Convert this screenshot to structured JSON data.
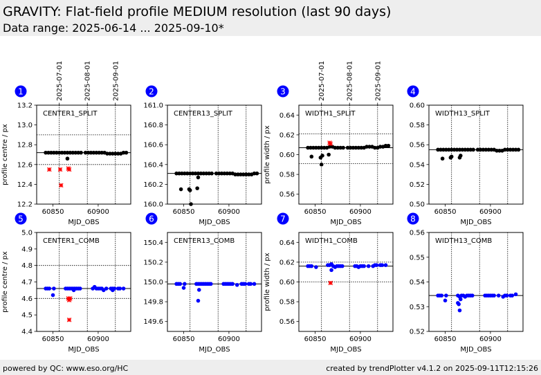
{
  "header": {
    "title": "GRAVITY: Flat-field profile MEDIUM resolution (last 90 days)",
    "subtitle": "Data range: 2025-06-14 ... 2025-09-10*"
  },
  "footer": {
    "left": "powered by QC: www.eso.org/HC",
    "right": "created by trendPlotter v4.1.2 on 2025-09-11T12:15:26"
  },
  "colors": {
    "split": "#000000",
    "comb": "#0000ff",
    "outlier": "#ff0000",
    "badge": "#0000ff",
    "header_bg": "#eeeeee"
  },
  "chart_data": [
    {
      "id": "1",
      "type": "scatter",
      "title": "CENTER1_SPLIT",
      "xlabel": "MJD_OBS",
      "ylabel": "profile centre / px",
      "xlim": [
        60832,
        60936
      ],
      "ylim": [
        12.2,
        13.2
      ],
      "yticks": [
        "12.2",
        "12.4",
        "12.6",
        "12.8",
        "13.0",
        "13.2"
      ],
      "xticks": [
        "60850",
        "60900"
      ],
      "date_ticks": [
        "2025-07-01",
        "2025-08-01",
        "2025-09-01"
      ],
      "reference": 12.72,
      "limits": [
        12.6,
        12.9
      ],
      "x": [
        60842,
        60845,
        60848,
        60851,
        60854,
        60857,
        60860,
        60863,
        60866,
        60869,
        60872,
        60875,
        60878,
        60881,
        60886,
        60889,
        60892,
        60895,
        60898,
        60901,
        60904,
        60907,
        60910,
        60913,
        60916,
        60919,
        60922,
        60925,
        60928,
        60931
      ],
      "y": [
        12.72,
        12.72,
        12.72,
        12.72,
        12.72,
        12.72,
        12.72,
        12.72,
        12.72,
        12.72,
        12.72,
        12.72,
        12.72,
        12.72,
        12.72,
        12.72,
        12.72,
        12.72,
        12.72,
        12.72,
        12.72,
        12.72,
        12.71,
        12.71,
        12.71,
        12.71,
        12.71,
        12.71,
        12.72,
        12.72
      ],
      "extra_x": [
        60866
      ],
      "extra_y": [
        12.66
      ],
      "outliers_x": [
        60846,
        60858,
        60859,
        60867,
        60868
      ],
      "outliers_y": [
        12.55,
        12.55,
        12.39,
        12.56,
        12.55
      ]
    },
    {
      "id": "2",
      "type": "scatter",
      "title": "CENTER13_SPLIT",
      "xlabel": "MJD_OBS",
      "ylabel": "",
      "xlim": [
        60832,
        60936
      ],
      "ylim": [
        160.0,
        161.0
      ],
      "yticks": [
        "160.0",
        "160.2",
        "160.4",
        "160.6",
        "160.8",
        "161.0"
      ],
      "xticks": [
        "60850",
        "60900"
      ],
      "date_ticks": [],
      "reference": 160.31,
      "limits": [],
      "x": [
        60842,
        60845,
        60848,
        60851,
        60854,
        60857,
        60860,
        60863,
        60866,
        60869,
        60872,
        60875,
        60878,
        60881,
        60886,
        60889,
        60892,
        60895,
        60898,
        60901,
        60904,
        60907,
        60910,
        60913,
        60916,
        60919,
        60922,
        60925,
        60928,
        60931
      ],
      "y": [
        160.31,
        160.31,
        160.31,
        160.31,
        160.31,
        160.31,
        160.31,
        160.31,
        160.31,
        160.31,
        160.31,
        160.31,
        160.31,
        160.31,
        160.31,
        160.31,
        160.31,
        160.31,
        160.31,
        160.31,
        160.31,
        160.3,
        160.3,
        160.3,
        160.3,
        160.3,
        160.3,
        160.3,
        160.31,
        160.31
      ],
      "extra_x": [
        60847,
        60856,
        60857,
        60858,
        60865,
        60866
      ],
      "extra_y": [
        160.15,
        160.15,
        160.14,
        160.0,
        160.16,
        160.27
      ],
      "outliers_x": [],
      "outliers_y": []
    },
    {
      "id": "3",
      "type": "scatter",
      "title": "WIDTH1_SPLIT",
      "xlabel": "MJD_OBS",
      "ylabel": "profile width / px",
      "xlim": [
        60832,
        60936
      ],
      "ylim": [
        0.55,
        0.65
      ],
      "yticks": [
        "0.56",
        "0.58",
        "0.60",
        "0.62",
        "0.64"
      ],
      "xticks": [
        "60850",
        "60900"
      ],
      "date_ticks": [
        "2025-07-01",
        "2025-08-01",
        "2025-09-01"
      ],
      "reference": 0.607,
      "limits": [
        0.591,
        0.621
      ],
      "x": [
        60842,
        60845,
        60848,
        60851,
        60854,
        60857,
        60860,
        60863,
        60866,
        60869,
        60872,
        60875,
        60878,
        60881,
        60886,
        60889,
        60892,
        60895,
        60898,
        60901,
        60904,
        60907,
        60910,
        60913,
        60916,
        60919,
        60922,
        60925,
        60928,
        60931
      ],
      "y": [
        0.607,
        0.607,
        0.607,
        0.607,
        0.607,
        0.607,
        0.607,
        0.607,
        0.608,
        0.608,
        0.607,
        0.607,
        0.607,
        0.607,
        0.607,
        0.607,
        0.607,
        0.607,
        0.607,
        0.607,
        0.607,
        0.608,
        0.608,
        0.608,
        0.607,
        0.607,
        0.608,
        0.608,
        0.609,
        0.609
      ],
      "extra_x": [
        60846,
        60856,
        60857,
        60858,
        60865
      ],
      "extra_y": [
        0.598,
        0.597,
        0.59,
        0.599,
        0.6
      ],
      "outliers_x": [
        60866,
        60867
      ],
      "outliers_y": [
        0.612,
        0.611
      ]
    },
    {
      "id": "4",
      "type": "scatter",
      "title": "WIDTH13_SPLIT",
      "xlabel": "MJD_OBS",
      "ylabel": "",
      "xlim": [
        60832,
        60936
      ],
      "ylim": [
        0.5,
        0.6
      ],
      "yticks": [
        "0.50",
        "0.52",
        "0.54",
        "0.56",
        "0.58",
        "0.60"
      ],
      "xticks": [
        "60850",
        "60900"
      ],
      "date_ticks": [],
      "reference": 0.555,
      "limits": [],
      "x": [
        60842,
        60845,
        60848,
        60851,
        60854,
        60857,
        60860,
        60863,
        60866,
        60869,
        60872,
        60875,
        60878,
        60881,
        60886,
        60889,
        60892,
        60895,
        60898,
        60901,
        60904,
        60907,
        60910,
        60913,
        60916,
        60919,
        60922,
        60925,
        60928,
        60931
      ],
      "y": [
        0.555,
        0.555,
        0.555,
        0.555,
        0.555,
        0.555,
        0.555,
        0.555,
        0.555,
        0.555,
        0.555,
        0.555,
        0.555,
        0.555,
        0.555,
        0.555,
        0.555,
        0.555,
        0.555,
        0.555,
        0.555,
        0.554,
        0.554,
        0.554,
        0.555,
        0.555,
        0.555,
        0.555,
        0.555,
        0.555
      ],
      "extra_x": [
        60847,
        60856,
        60857,
        60866,
        60867
      ],
      "extra_y": [
        0.546,
        0.547,
        0.548,
        0.547,
        0.549
      ],
      "outliers_x": [],
      "outliers_y": []
    },
    {
      "id": "5",
      "type": "scatter",
      "title": "CENTER1_COMB",
      "xlabel": "MJD_OBS",
      "ylabel": "profile centre / px",
      "xlim": [
        60832,
        60936
      ],
      "ylim": [
        4.4,
        5.0
      ],
      "yticks": [
        "4.4",
        "4.5",
        "4.6",
        "4.7",
        "4.8",
        "4.9",
        "5.0"
      ],
      "xticks": [
        "60850",
        "60900"
      ],
      "date_ticks": [],
      "reference": 4.66,
      "limits": [
        4.6,
        4.8
      ],
      "x": [
        60842,
        60844,
        60846,
        60851,
        60864,
        60866,
        60868,
        60870,
        60872,
        60874,
        60876,
        60878,
        60880,
        60894,
        60896,
        60898,
        60900,
        60902,
        60904,
        60909,
        60914,
        60916,
        60918,
        60922,
        60924,
        60928
      ],
      "y": [
        4.66,
        4.66,
        4.66,
        4.66,
        4.66,
        4.66,
        4.66,
        4.66,
        4.66,
        4.66,
        4.66,
        4.66,
        4.66,
        4.66,
        4.67,
        4.66,
        4.66,
        4.66,
        4.66,
        4.66,
        4.66,
        4.66,
        4.66,
        4.66,
        4.66,
        4.66
      ],
      "extra_x": [
        60850,
        60873,
        60906,
        60916
      ],
      "extra_y": [
        4.62,
        4.65,
        4.65,
        4.65
      ],
      "outliers_x": [
        60867,
        60868,
        60869,
        60868
      ],
      "outliers_y": [
        4.6,
        4.59,
        4.6,
        4.47
      ]
    },
    {
      "id": "6",
      "type": "scatter",
      "title": "CENTER13_COMB",
      "xlabel": "MJD_OBS",
      "ylabel": "",
      "xlim": [
        60832,
        60936
      ],
      "ylim": [
        149.5,
        150.5
      ],
      "yticks": [
        "149.6",
        "149.8",
        "150.0",
        "150.2",
        "150.4"
      ],
      "xticks": [
        "60850",
        "60900"
      ],
      "date_ticks": [],
      "reference": 149.98,
      "limits": [],
      "x": [
        60842,
        60844,
        60846,
        60851,
        60864,
        60866,
        60868,
        60870,
        60872,
        60874,
        60876,
        60878,
        60880,
        60894,
        60896,
        60898,
        60900,
        60902,
        60904,
        60909,
        60914,
        60916,
        60918,
        60922,
        60924,
        60928
      ],
      "y": [
        149.98,
        149.98,
        149.98,
        149.98,
        149.98,
        149.98,
        149.98,
        149.98,
        149.98,
        149.98,
        149.98,
        149.98,
        149.98,
        149.98,
        149.98,
        149.98,
        149.98,
        149.98,
        149.98,
        149.97,
        149.98,
        149.98,
        149.98,
        149.98,
        149.98,
        149.98
      ],
      "extra_x": [
        60850,
        60866,
        60867
      ],
      "extra_y": [
        149.94,
        149.81,
        149.92
      ],
      "outliers_x": [],
      "outliers_y": []
    },
    {
      "id": "7",
      "type": "scatter",
      "title": "WIDTH1_COMB",
      "xlabel": "MJD_OBS",
      "ylabel": "profile width / px",
      "xlim": [
        60832,
        60936
      ],
      "ylim": [
        0.55,
        0.65
      ],
      "yticks": [
        "0.56",
        "0.58",
        "0.60",
        "0.62",
        "0.64"
      ],
      "xticks": [
        "60850",
        "60900"
      ],
      "date_ticks": [],
      "reference": 0.616,
      "limits": [
        0.6,
        0.62
      ],
      "x": [
        60842,
        60844,
        60846,
        60851,
        60864,
        60866,
        60868,
        60870,
        60872,
        60874,
        60876,
        60878,
        60880,
        60894,
        60896,
        60898,
        60900,
        60902,
        60904,
        60909,
        60914,
        60916,
        60918,
        60922,
        60924,
        60928
      ],
      "y": [
        0.616,
        0.616,
        0.616,
        0.615,
        0.617,
        0.617,
        0.618,
        0.616,
        0.615,
        0.616,
        0.616,
        0.616,
        0.616,
        0.616,
        0.616,
        0.615,
        0.616,
        0.616,
        0.616,
        0.616,
        0.616,
        0.617,
        0.617,
        0.617,
        0.617,
        0.617
      ],
      "extra_x": [
        60868
      ],
      "extra_y": [
        0.612
      ],
      "outliers_x": [
        60867
      ],
      "outliers_y": [
        0.599
      ]
    },
    {
      "id": "8",
      "type": "scatter",
      "title": "WIDTH13_COMB",
      "xlabel": "MJD_OBS",
      "ylabel": "",
      "xlim": [
        60832,
        60936
      ],
      "ylim": [
        0.52,
        0.56
      ],
      "yticks": [
        "0.52",
        "0.53",
        "0.54",
        "0.55",
        "0.56"
      ],
      "xticks": [
        "60850",
        "60900"
      ],
      "date_ticks": [],
      "reference": 0.5345,
      "limits": [],
      "x": [
        60842,
        60844,
        60846,
        60851,
        60864,
        60866,
        60868,
        60870,
        60872,
        60874,
        60876,
        60878,
        60880,
        60894,
        60896,
        60898,
        60900,
        60902,
        60904,
        60909,
        60914,
        60916,
        60918,
        60922,
        60924,
        60928
      ],
      "y": [
        0.5345,
        0.5345,
        0.5345,
        0.5345,
        0.5345,
        0.534,
        0.5345,
        0.5345,
        0.534,
        0.5345,
        0.5345,
        0.5345,
        0.5345,
        0.5345,
        0.5345,
        0.5345,
        0.5345,
        0.5345,
        0.5345,
        0.5345,
        0.534,
        0.5345,
        0.5345,
        0.5345,
        0.5345,
        0.535
      ],
      "extra_x": [
        60850,
        60864,
        60865,
        60866,
        60867
      ],
      "extra_y": [
        0.5325,
        0.5315,
        0.531,
        0.5285,
        0.533
      ],
      "outliers_x": [],
      "outliers_y": []
    }
  ]
}
